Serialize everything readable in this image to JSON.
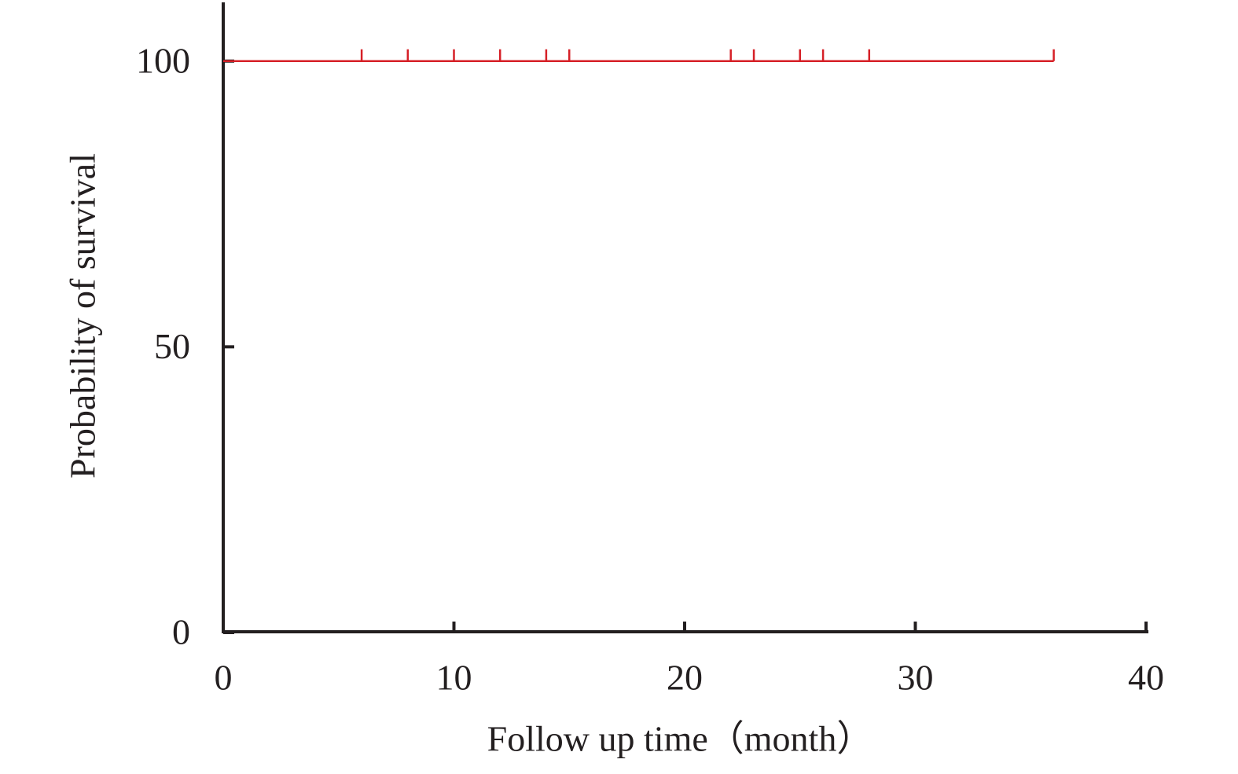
{
  "chart_data": {
    "type": "line",
    "x_label": "Follow up time（month）",
    "y_label": "Probability of survival",
    "xlim": [
      0,
      40
    ],
    "xticks": [
      0,
      10,
      20,
      30,
      40
    ],
    "ylim": [
      0,
      110
    ],
    "yticks": [
      0,
      50,
      100
    ],
    "series": [
      {
        "color": "#d62027",
        "x": [
          0,
          36
        ],
        "values": [
          100,
          100
        ],
        "censored_x": [
          6,
          8,
          10,
          12,
          14,
          15,
          22,
          23,
          25,
          26,
          28,
          36
        ],
        "censored_values": [
          100,
          100,
          100,
          100,
          100,
          100,
          100,
          100,
          100,
          100,
          100,
          100
        ]
      }
    ]
  }
}
